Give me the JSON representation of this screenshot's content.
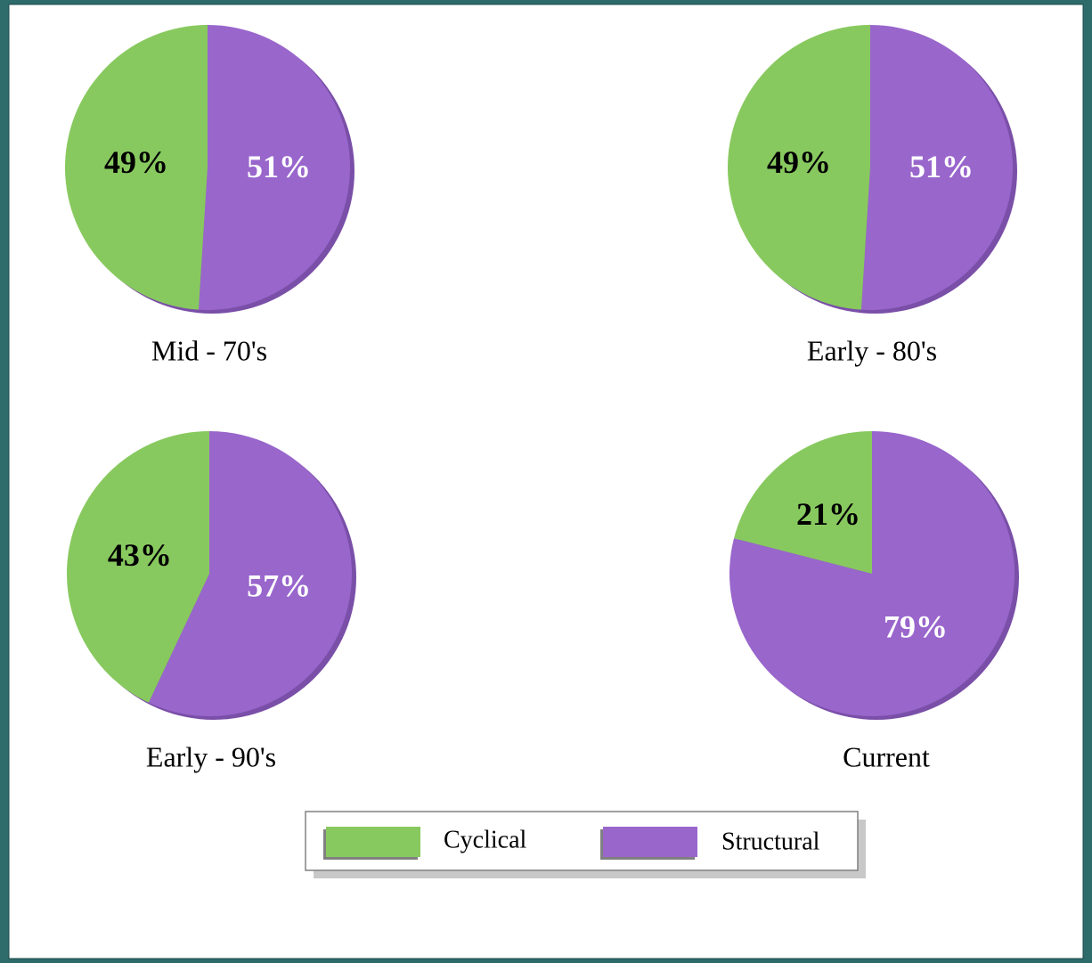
{
  "chart_data": [
    {
      "type": "pie",
      "title": "Mid - 70's",
      "categories": [
        "Cyclical",
        "Structural"
      ],
      "values": [
        49,
        51
      ],
      "value_labels": [
        "49%",
        "51%"
      ],
      "colors": [
        "#88c95f",
        "#9966cc"
      ]
    },
    {
      "type": "pie",
      "title": "Early - 80's",
      "categories": [
        "Cyclical",
        "Structural"
      ],
      "values": [
        49,
        51
      ],
      "value_labels": [
        "49%",
        "51%"
      ],
      "colors": [
        "#88c95f",
        "#9966cc"
      ]
    },
    {
      "type": "pie",
      "title": "Early - 90's",
      "categories": [
        "Cyclical",
        "Structural"
      ],
      "values": [
        43,
        57
      ],
      "value_labels": [
        "43%",
        "57%"
      ],
      "colors": [
        "#88c95f",
        "#9966cc"
      ]
    },
    {
      "type": "pie",
      "title": "Current",
      "categories": [
        "Cyclical",
        "Structural"
      ],
      "values": [
        21,
        79
      ],
      "value_labels": [
        "21%",
        "79%"
      ],
      "colors": [
        "#88c95f",
        "#9966cc"
      ]
    }
  ]
}
